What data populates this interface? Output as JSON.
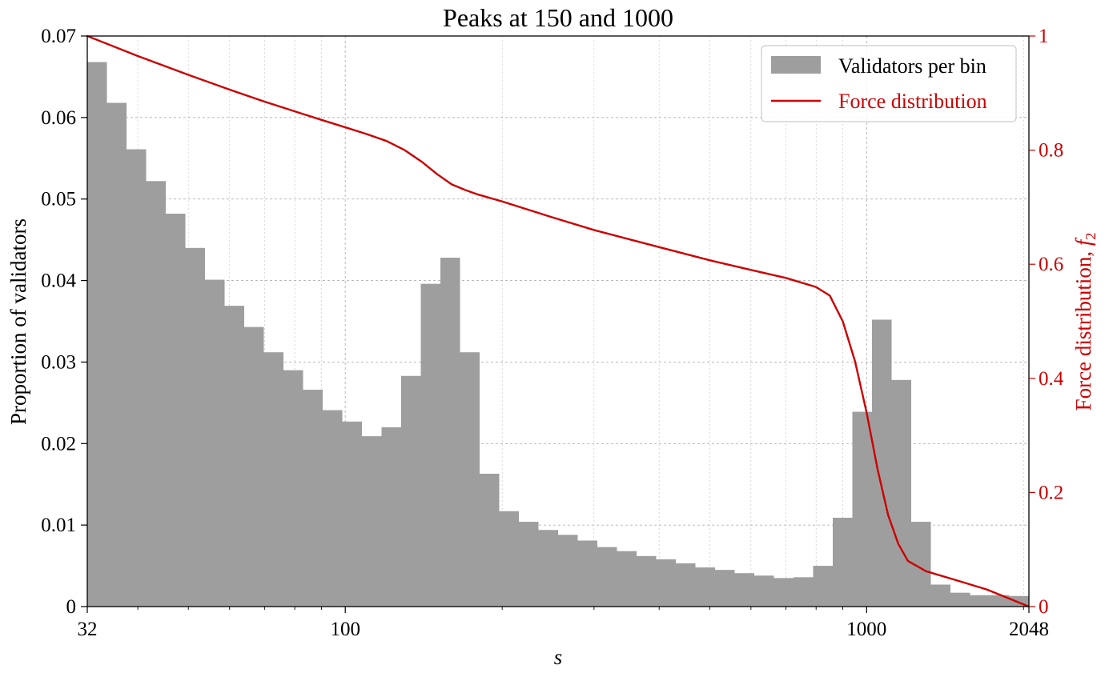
{
  "chart_data": {
    "type": "bar",
    "title": "Peaks at 150 and 1000",
    "xlabel": "s",
    "ylabel": "Proportion of validators",
    "y2label_main": "Force distribution, ",
    "y2label_math": "f",
    "y2label_sub": "2",
    "x_scale": "log",
    "x_range": [
      32,
      2048
    ],
    "x_ticks": [
      {
        "value": 32,
        "label": "32"
      },
      {
        "value": 100,
        "label": "100"
      },
      {
        "value": 1000,
        "label": "1000"
      },
      {
        "value": 2048,
        "label": "2048"
      }
    ],
    "y_range": [
      0,
      0.07
    ],
    "y_ticks": [
      {
        "value": 0,
        "label": "0"
      },
      {
        "value": 0.01,
        "label": "0.01"
      },
      {
        "value": 0.02,
        "label": "0.02"
      },
      {
        "value": 0.03,
        "label": "0.03"
      },
      {
        "value": 0.04,
        "label": "0.04"
      },
      {
        "value": 0.05,
        "label": "0.05"
      },
      {
        "value": 0.06,
        "label": "0.06"
      },
      {
        "value": 0.07,
        "label": "0.07"
      }
    ],
    "y2_range": [
      0,
      1
    ],
    "y2_ticks": [
      {
        "value": 0,
        "label": "0"
      },
      {
        "value": 0.2,
        "label": "0.2"
      },
      {
        "value": 0.4,
        "label": "0.4"
      },
      {
        "value": 0.6,
        "label": "0.6"
      },
      {
        "value": 0.8,
        "label": "0.8"
      },
      {
        "value": 1,
        "label": "1"
      }
    ],
    "grid": true,
    "legend_position": "top-right",
    "colors": {
      "bars": "#9e9e9e",
      "line": "#cc0000",
      "grid": "#b0b0b0"
    },
    "legend": [
      {
        "name": "Validators per bin",
        "kind": "bar"
      },
      {
        "name": "Force distribution",
        "kind": "line"
      }
    ],
    "bins_per_doubling": 8,
    "bar_series": {
      "name": "Validators per bin",
      "values": [
        0.0668,
        0.0618,
        0.0561,
        0.0522,
        0.0482,
        0.044,
        0.0401,
        0.0369,
        0.0343,
        0.0312,
        0.029,
        0.0266,
        0.0241,
        0.0227,
        0.0209,
        0.022,
        0.0283,
        0.0396,
        0.0428,
        0.0312,
        0.0163,
        0.0117,
        0.0104,
        0.0094,
        0.0088,
        0.0081,
        0.0073,
        0.0068,
        0.0062,
        0.0058,
        0.0053,
        0.0048,
        0.0045,
        0.0041,
        0.0038,
        0.0035,
        0.0036,
        0.005,
        0.0109,
        0.0239,
        0.0352,
        0.0278,
        0.0104,
        0.0027,
        0.0017,
        0.0014,
        0.0014,
        0.0013
      ]
    },
    "line_series": {
      "name": "Force distribution",
      "x": [
        32,
        40,
        50,
        60,
        70,
        80,
        90,
        100,
        110,
        120,
        130,
        140,
        150,
        160,
        170,
        180,
        200,
        250,
        300,
        400,
        500,
        600,
        700,
        800,
        850,
        900,
        950,
        1000,
        1050,
        1100,
        1150,
        1200,
        1300,
        1500,
        1700,
        2048
      ],
      "y": [
        1.0,
        0.965,
        0.932,
        0.906,
        0.885,
        0.868,
        0.853,
        0.84,
        0.828,
        0.816,
        0.8,
        0.78,
        0.758,
        0.74,
        0.73,
        0.722,
        0.71,
        0.682,
        0.66,
        0.63,
        0.607,
        0.59,
        0.576,
        0.56,
        0.545,
        0.5,
        0.43,
        0.34,
        0.24,
        0.16,
        0.11,
        0.08,
        0.062,
        0.045,
        0.03,
        0.0
      ]
    }
  }
}
